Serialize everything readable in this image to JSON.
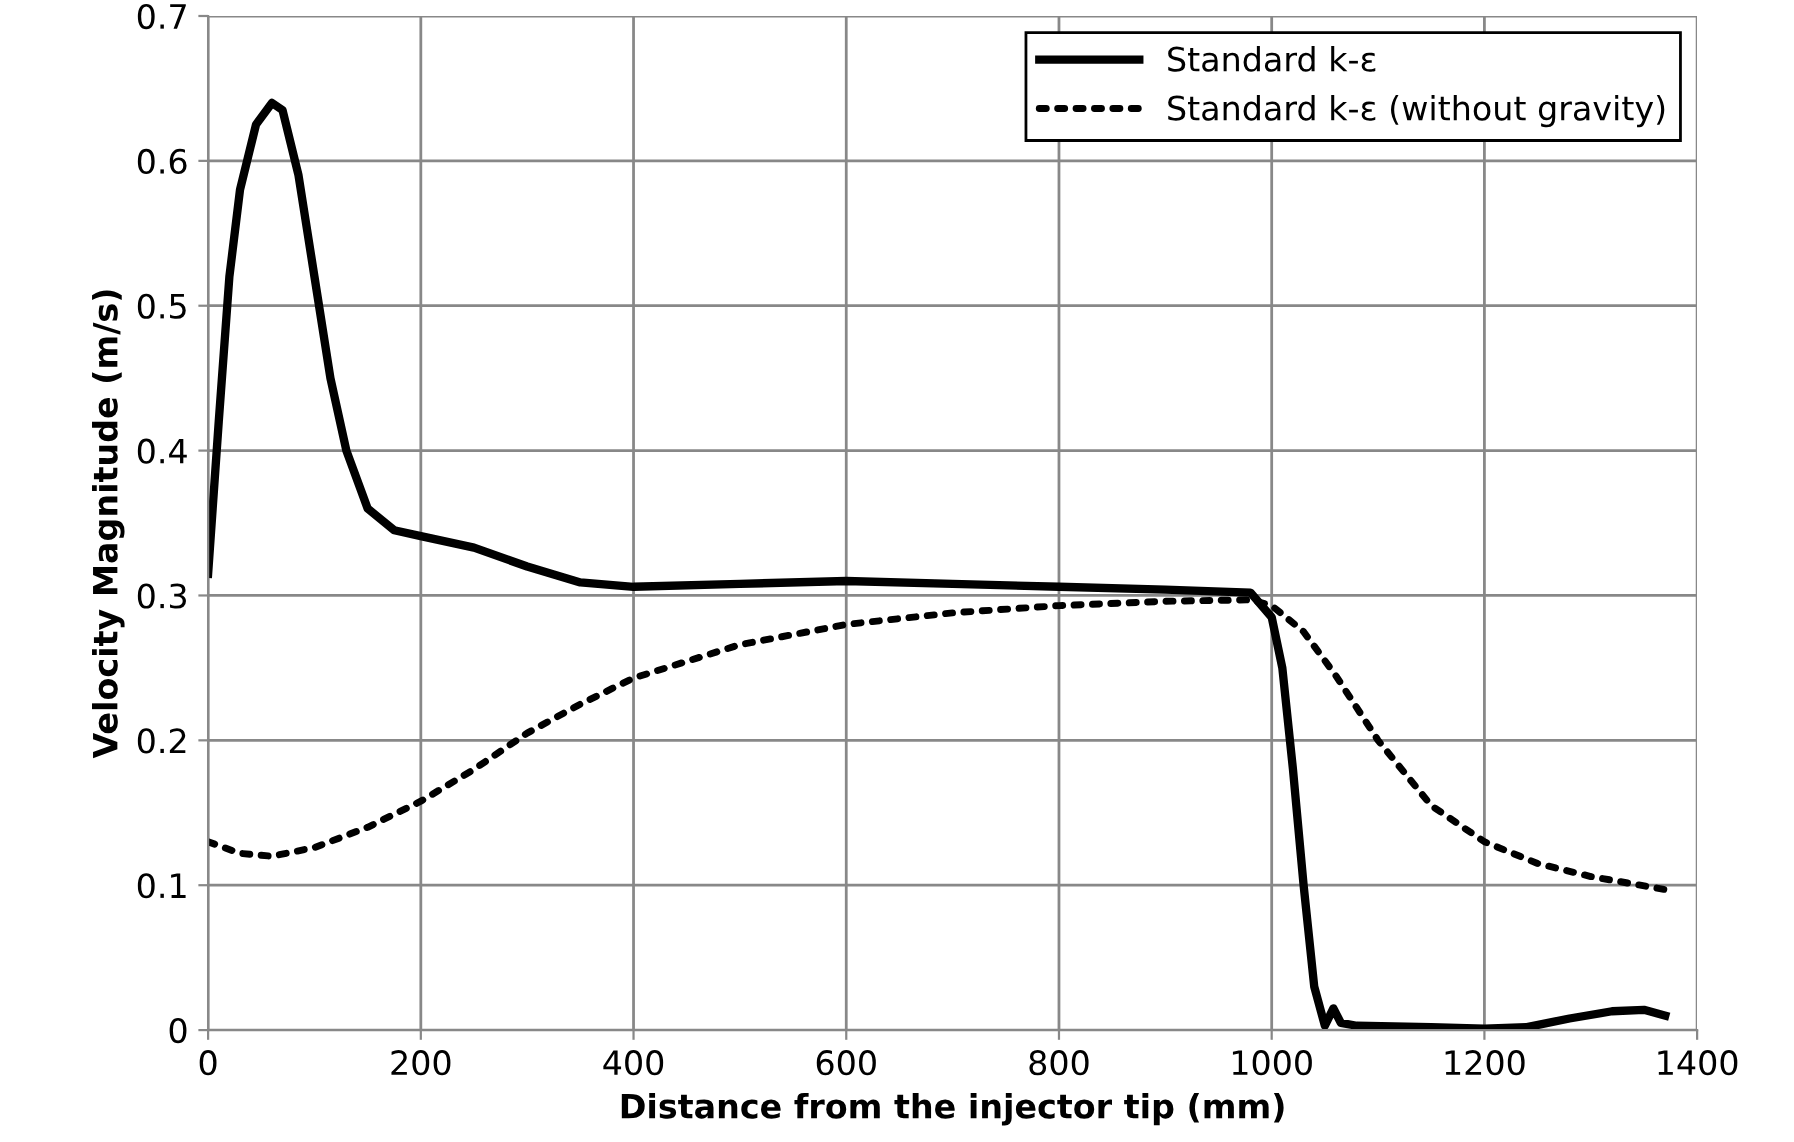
{
  "chart_data": {
    "type": "line",
    "xlabel": "Distance from the injector tip (mm)",
    "ylabel": "Velocity Magnitude (m/s)",
    "xlim": [
      0,
      1400
    ],
    "xticks": [
      0,
      200,
      400,
      600,
      800,
      1000,
      1200,
      1400
    ],
    "ylim": [
      0,
      0.7
    ],
    "yticks": [
      0,
      0.1,
      0.2,
      0.3,
      0.4,
      0.5,
      0.6,
      0.7
    ],
    "grid": true,
    "legend": "top right",
    "marker": "none",
    "series": [
      {
        "name": "Standard k-ε",
        "color": "#000000",
        "line_style": "solid",
        "x": [
          0,
          10,
          20,
          30,
          45,
          60,
          70,
          85,
          100,
          115,
          130,
          150,
          175,
          200,
          250,
          300,
          350,
          400,
          500,
          600,
          700,
          800,
          900,
          980,
          1000,
          1010,
          1020,
          1030,
          1040,
          1050,
          1058,
          1065,
          1080,
          1150,
          1200,
          1240,
          1280,
          1320,
          1350,
          1370
        ],
        "values": [
          0.315,
          0.42,
          0.52,
          0.58,
          0.625,
          0.64,
          0.635,
          0.59,
          0.52,
          0.45,
          0.4,
          0.36,
          0.345,
          0.341,
          0.333,
          0.32,
          0.309,
          0.306,
          0.308,
          0.31,
          0.308,
          0.306,
          0.304,
          0.302,
          0.285,
          0.25,
          0.18,
          0.1,
          0.03,
          0.003,
          0.015,
          0.005,
          0.003,
          0.002,
          0.001,
          0.002,
          0.008,
          0.013,
          0.014,
          0.01
        ]
      },
      {
        "name": "Standard k-ε (without gravity)",
        "color": "#000000",
        "line_style": "dotted",
        "x": [
          0,
          30,
          60,
          100,
          150,
          200,
          250,
          300,
          350,
          400,
          500,
          600,
          700,
          800,
          900,
          980,
          1000,
          1030,
          1060,
          1100,
          1150,
          1200,
          1250,
          1300,
          1370
        ],
        "values": [
          0.13,
          0.122,
          0.12,
          0.126,
          0.14,
          0.158,
          0.18,
          0.205,
          0.225,
          0.243,
          0.266,
          0.28,
          0.288,
          0.293,
          0.296,
          0.297,
          0.293,
          0.275,
          0.245,
          0.2,
          0.155,
          0.13,
          0.115,
          0.106,
          0.097
        ]
      }
    ]
  }
}
